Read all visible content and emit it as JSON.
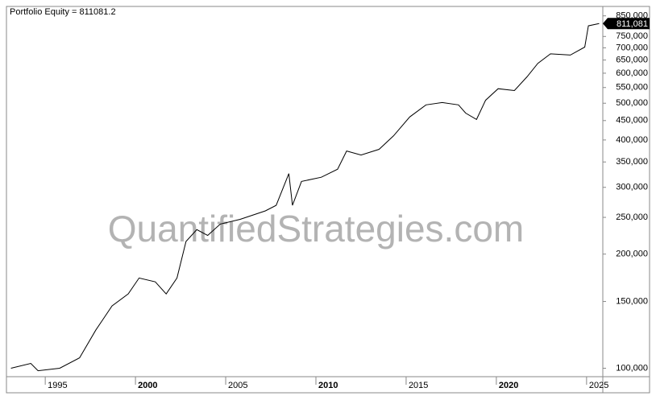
{
  "chart_data": {
    "type": "line",
    "title": "Portfolio Equity = 811081.2",
    "watermark": "QuantifiedStrategies.com",
    "log_scale": true,
    "x": [
      1993.1,
      1994.2,
      1994.6,
      1995.8,
      1996.9,
      1997.8,
      1998.7,
      1999.6,
      2000.2,
      2001.1,
      2001.7,
      2002.3,
      2002.8,
      2003.4,
      2004.0,
      2004.7,
      2005.8,
      2007.2,
      2007.8,
      2008.5,
      2008.7,
      2009.2,
      2010.3,
      2011.2,
      2011.7,
      2012.5,
      2013.5,
      2014.3,
      2015.2,
      2016.1,
      2017.0,
      2017.9,
      2018.3,
      2018.9,
      2019.4,
      2020.1,
      2021.0,
      2021.7,
      2022.3,
      2023.0,
      2024.1,
      2024.9,
      2025.1,
      2025.7
    ],
    "series": [
      {
        "name": "Portfolio Equity",
        "color": "#000000",
        "values": [
          100000,
          103000,
          98500,
          100000,
          106500,
          126000,
          146000,
          157000,
          173000,
          169000,
          157000,
          173000,
          216000,
          232000,
          224000,
          240000,
          247000,
          260000,
          269000,
          326000,
          269000,
          311000,
          319000,
          335000,
          374000,
          365000,
          378000,
          410000,
          460000,
          495000,
          502000,
          495000,
          471000,
          453000,
          509000,
          546000,
          540000,
          587000,
          637000,
          675000,
          670000,
          703000,
          800000,
          811081.2
        ],
        "value_labels": [
          null,
          null,
          null,
          null,
          null,
          null,
          null,
          null,
          null,
          null,
          null,
          null,
          null,
          null,
          null,
          null,
          null,
          null,
          null,
          null,
          null,
          null,
          null,
          null,
          null,
          null,
          null,
          null,
          null,
          null,
          null,
          null,
          null,
          null,
          null,
          null,
          null,
          null,
          null,
          null,
          null,
          null,
          null,
          "811,081"
        ]
      }
    ],
    "xlim": [
      1992.85,
      2025.9
    ],
    "xticks": [
      1995,
      2000,
      2005,
      2010,
      2015,
      2020,
      2025
    ],
    "ylim": [
      95000,
      900000
    ],
    "yticks": [
      {
        "value": 100000,
        "label": "100,000"
      },
      {
        "value": 150000,
        "label": "150,000"
      },
      {
        "value": 200000,
        "label": "200,000"
      },
      {
        "value": 250000,
        "label": "250,000"
      },
      {
        "value": 300000,
        "label": "300,000"
      },
      {
        "value": 350000,
        "label": "350,000"
      },
      {
        "value": 400000,
        "label": "400,000"
      },
      {
        "value": 450000,
        "label": "450,000"
      },
      {
        "value": 500000,
        "label": "500,000"
      },
      {
        "value": 550000,
        "label": "550,000"
      },
      {
        "value": 600000,
        "label": "600,000"
      },
      {
        "value": 650000,
        "label": "650,000"
      },
      {
        "value": 700000,
        "label": "700,000"
      },
      {
        "value": 750000,
        "label": "750,000"
      },
      {
        "value": 850000,
        "label": "850,000"
      }
    ],
    "grid": false
  }
}
